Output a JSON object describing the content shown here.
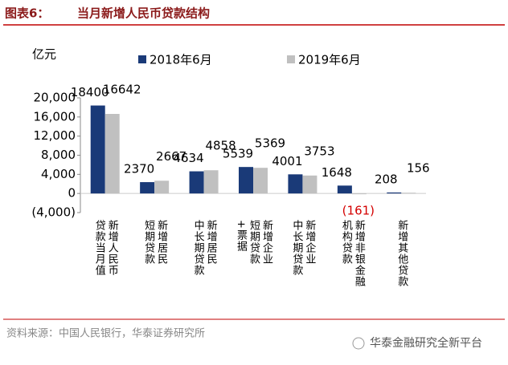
{
  "header": {
    "label": "图表6：",
    "title": "当月新增人民币贷款结构"
  },
  "chart_data": {
    "type": "bar",
    "y_unit": "亿元",
    "categories": [
      "新增人民币\n贷款当月值",
      "新增居民\n短期贷款",
      "新增居民\n中长期贷款",
      "新增企业\n短期贷款\n+票据",
      "新增企业\n中长期贷款",
      "新增非银金融\n机构贷款",
      "新增其他贷款"
    ],
    "series": [
      {
        "name": "2018年6月",
        "color": "#1a3a78",
        "values": [
          18400,
          2370,
          4634,
          5539,
          4001,
          1648,
          208
        ]
      },
      {
        "name": "2019年6月",
        "color": "#c0c0c0",
        "values": [
          16642,
          2667,
          4858,
          5369,
          3753,
          -161,
          156
        ],
        "value_labels": [
          "16642",
          "2667",
          "4858",
          "5369",
          "3753",
          "(161)",
          "156"
        ]
      }
    ],
    "negative_label_color": "#d40000",
    "ylim": [
      -4000,
      20000
    ],
    "yticks": [
      {
        "value": -4000,
        "label": "(4,000)"
      },
      0,
      {
        "value": 4000,
        "label": "4,000"
      },
      {
        "value": 8000,
        "label": "8,000"
      },
      {
        "value": 12000,
        "label": "12,000"
      },
      {
        "value": 16000,
        "label": "16,000"
      },
      {
        "value": 20000,
        "label": "20,000"
      }
    ],
    "grid": false
  },
  "footer": {
    "source": "资料来源：中国人民银行，华泰证券研究所",
    "watermark": "华泰金融研究全新平台"
  }
}
